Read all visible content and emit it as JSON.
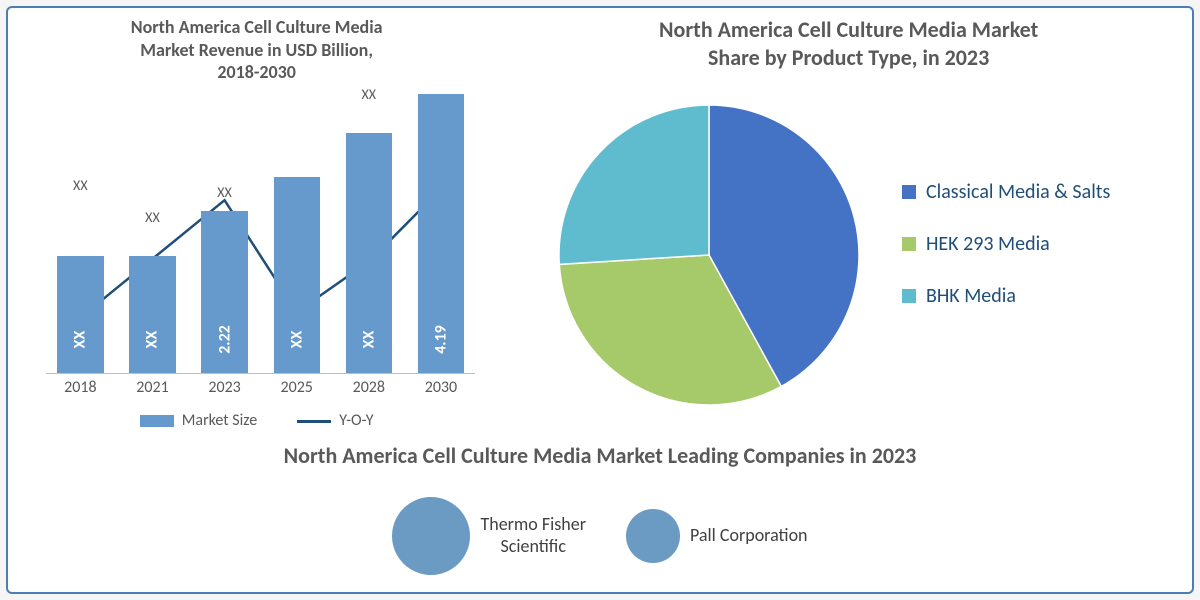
{
  "bar_chart": {
    "type": "bar_with_line",
    "title_lines": [
      "North America Cell Culture Media",
      "Market Revenue in USD Billion,",
      "2018-2030"
    ],
    "title_fontsize": 18,
    "title_color": "#595959",
    "categories": [
      "2018",
      "2021",
      "2023",
      "2025",
      "2028",
      "2030"
    ],
    "bar_heights_pct": [
      42,
      42,
      58,
      70,
      86,
      100
    ],
    "bar_value_labels": [
      "XX",
      "XX",
      "2.22",
      "XX",
      "XX",
      "4.19"
    ],
    "bar_top_labels": [
      "XX",
      "XX",
      "XX",
      "",
      "XX",
      ""
    ],
    "bar_top_label_offsets": [
      62,
      30,
      10,
      0,
      30,
      0
    ],
    "bar_color": "#6699cc",
    "bar_label_color": "#ffffff",
    "line_points_pct": [
      20,
      41,
      62,
      22,
      40,
      66
    ],
    "line_color": "#1f4e79",
    "line_width": 2.5,
    "axis_color": "#bfbfbf",
    "text_color": "#595959",
    "legend": {
      "series_a": "Market Size",
      "series_b": "Y-O-Y"
    },
    "bar_width_pct": 10.8,
    "gap_pct": 6,
    "xlabel_fontsize": 16
  },
  "pie_chart": {
    "type": "pie",
    "title_lines": [
      "North America Cell Culture Media Market",
      "Share by Product Type, in 2023"
    ],
    "title_fontsize": 22,
    "title_color": "#595959",
    "slices": [
      {
        "label": "Classical Media & Salts",
        "value": 42,
        "color": "#4472c4"
      },
      {
        "label": "HEK 293 Media",
        "value": 32,
        "color": "#a6c96a"
      },
      {
        "label": "BHK Media",
        "value": 26,
        "color": "#5fbcce"
      }
    ],
    "radius": 150,
    "legend_fontsize": 20,
    "legend_swatch_size": 14,
    "text_color": "#1f4e79"
  },
  "companies": {
    "title": "North America Cell Culture Media Market Leading Companies in 2023",
    "title_fontsize": 22,
    "title_color": "#595959",
    "bubble_color": "#6b9bc3",
    "items": [
      {
        "label": "Thermo Fisher Scientific",
        "diameter": 78
      },
      {
        "label": "Pall Corporation",
        "diameter": 54
      }
    ],
    "label_fontsize": 18,
    "label_color": "#404040"
  },
  "frame": {
    "border_color": "#4a7fb5",
    "background": "#ffffff"
  }
}
